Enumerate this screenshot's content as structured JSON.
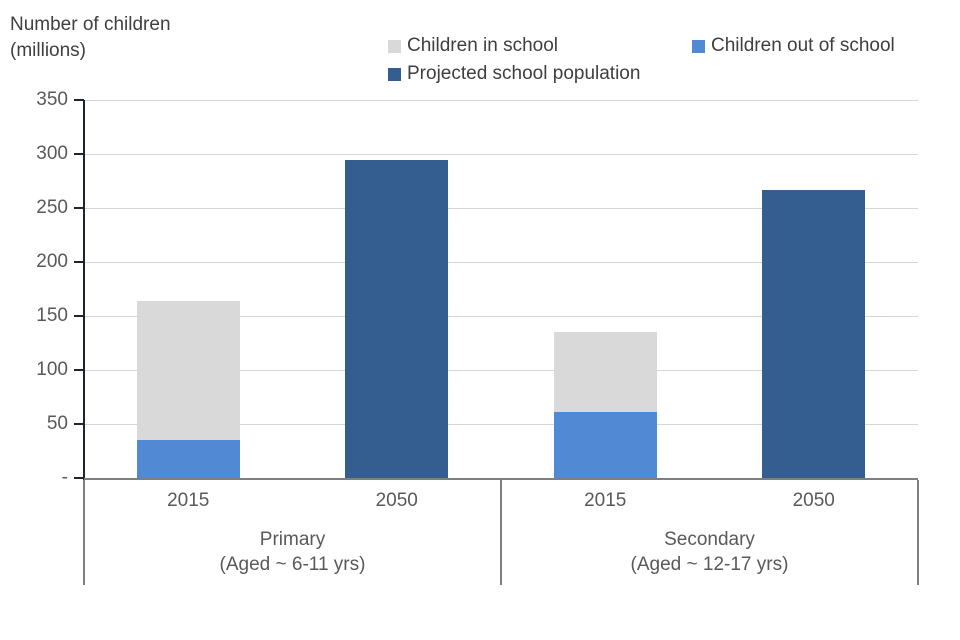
{
  "y_axis_title": {
    "line1": "Number of children",
    "line2": "(millions)"
  },
  "legend": [
    {
      "label": "Children in school"
    },
    {
      "label": "Children out of school"
    },
    {
      "label": "Projected school population"
    }
  ],
  "series_colors": {
    "Children in school": "#d9d9d9",
    "Children out of school": "#5289d4",
    "Projected school population": "#345e8f"
  },
  "colors": {
    "axis_line": "#1b2430",
    "gridline": "#d6d6d6",
    "baseline": "#7f7f7f",
    "box_border": "#7f7f7f",
    "title_text": "#3f3f3f",
    "tick_text": "#595959"
  },
  "chart_data": {
    "type": "bar",
    "stacked": true,
    "title": "Number of children (millions)",
    "ylabel": "Number of children (millions)",
    "xlabel": "",
    "ylim": [
      0,
      350
    ],
    "ytick_interval": 50,
    "ytick_labels": [
      "-",
      "50",
      "100",
      "150",
      "200",
      "250",
      "300",
      "350"
    ],
    "grid": true,
    "legend_position": "top",
    "series": [
      {
        "name": "Children in school",
        "values": [
          129,
          0,
          74,
          0
        ]
      },
      {
        "name": "Children out of school",
        "values": [
          35,
          0,
          61,
          0
        ]
      },
      {
        "name": "Projected school population",
        "values": [
          0,
          294,
          0,
          267
        ]
      }
    ],
    "groups": [
      {
        "label": "Primary",
        "sublabel": "(Aged ~ 6-11 yrs)",
        "bars": [
          {
            "x_label": "2015",
            "segments": [
              {
                "series": "Children out of school",
                "value": 35
              },
              {
                "series": "Children in school",
                "value": 129
              }
            ]
          },
          {
            "x_label": "2050",
            "segments": [
              {
                "series": "Projected school population",
                "value": 294
              }
            ]
          }
        ]
      },
      {
        "label": "Secondary",
        "sublabel": "(Aged ~ 12-17 yrs)",
        "bars": [
          {
            "x_label": "2015",
            "segments": [
              {
                "series": "Children out of school",
                "value": 61
              },
              {
                "series": "Children in school",
                "value": 74
              }
            ]
          },
          {
            "x_label": "2050",
            "segments": [
              {
                "series": "Projected school population",
                "value": 267
              }
            ]
          }
        ]
      }
    ]
  }
}
